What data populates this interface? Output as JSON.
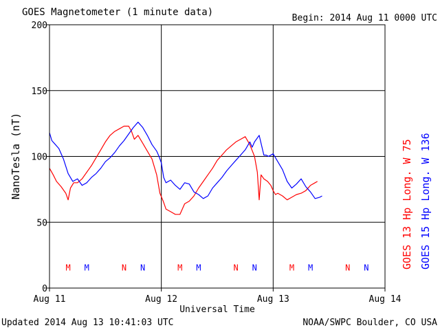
{
  "chart_data": {
    "type": "line",
    "title": "GOES Magnetometer (1 minute data)",
    "begin_label": "Begin:  2014 Aug 11 0000 UTC",
    "ylabel": "NanoTesla (nT)",
    "xlabel": "Universal Time",
    "ylim": [
      0,
      200
    ],
    "xlim": [
      0,
      72
    ],
    "x_units": "hours since 2014 Aug 11 0000 UTC",
    "y_ticks": [
      "0",
      "50",
      "100",
      "150",
      "200"
    ],
    "x_ticks": [
      {
        "x": 0,
        "label": "Aug 11"
      },
      {
        "x": 24,
        "label": "Aug 12"
      },
      {
        "x": 48,
        "label": "Aug 13"
      },
      {
        "x": 72,
        "label": "Aug 14"
      }
    ],
    "grid": true,
    "series": [
      {
        "name": "GOES 13 Hp  Long. W 75",
        "color": "#ff0000",
        "points": [
          [
            0,
            91
          ],
          [
            0.8,
            86
          ],
          [
            1.5,
            81
          ],
          [
            2.5,
            77
          ],
          [
            3.5,
            72
          ],
          [
            4.0,
            67
          ],
          [
            4.5,
            76
          ],
          [
            5.2,
            80
          ],
          [
            6.0,
            80
          ],
          [
            7.0,
            83
          ],
          [
            8.0,
            88
          ],
          [
            9.0,
            93
          ],
          [
            10.0,
            99
          ],
          [
            11.0,
            105
          ],
          [
            12.0,
            111
          ],
          [
            13.0,
            116
          ],
          [
            14.0,
            119
          ],
          [
            15.0,
            121
          ],
          [
            16.0,
            123
          ],
          [
            17.0,
            123
          ],
          [
            17.6,
            119
          ],
          [
            18.2,
            113
          ],
          [
            19.0,
            116
          ],
          [
            20.0,
            110
          ],
          [
            21.0,
            104
          ],
          [
            22.0,
            98
          ],
          [
            23.0,
            86
          ],
          [
            23.7,
            72
          ],
          [
            24.4,
            66
          ],
          [
            25.0,
            60
          ],
          [
            26.0,
            58
          ],
          [
            27.0,
            56
          ],
          [
            28.0,
            56
          ],
          [
            29.0,
            64
          ],
          [
            30.0,
            66
          ],
          [
            31.0,
            70
          ],
          [
            32.0,
            76
          ],
          [
            33.0,
            81
          ],
          [
            34.0,
            86
          ],
          [
            35.0,
            91
          ],
          [
            36.0,
            97
          ],
          [
            37.0,
            101
          ],
          [
            38.0,
            105
          ],
          [
            39.0,
            108
          ],
          [
            40.0,
            111
          ],
          [
            41.0,
            113
          ],
          [
            42.0,
            115
          ],
          [
            43.0,
            109
          ],
          [
            44.0,
            100
          ],
          [
            44.6,
            88
          ],
          [
            45.0,
            67
          ],
          [
            45.4,
            86
          ],
          [
            46.0,
            83
          ],
          [
            46.8,
            81
          ],
          [
            47.5,
            78
          ],
          [
            48.0,
            74
          ],
          [
            48.5,
            71
          ],
          [
            49.0,
            72
          ],
          [
            50.0,
            70
          ],
          [
            51.0,
            67
          ],
          [
            52.0,
            69
          ],
          [
            53.0,
            71
          ],
          [
            54.0,
            72
          ],
          [
            55.0,
            74
          ],
          [
            56.0,
            78
          ],
          [
            57.0,
            80
          ],
          [
            57.5,
            81
          ]
        ]
      },
      {
        "name": "GOES 15 Hp  Long. W 136",
        "color": "#0000ff",
        "points": [
          [
            0,
            118
          ],
          [
            0.5,
            112
          ],
          [
            1.0,
            110
          ],
          [
            2.0,
            106
          ],
          [
            3.0,
            98
          ],
          [
            4.0,
            87
          ],
          [
            5.0,
            81
          ],
          [
            6.0,
            83
          ],
          [
            7.0,
            78
          ],
          [
            8.0,
            80
          ],
          [
            9.0,
            84
          ],
          [
            10.0,
            87
          ],
          [
            11.0,
            91
          ],
          [
            12.0,
            96
          ],
          [
            13.0,
            99
          ],
          [
            14.0,
            103
          ],
          [
            15.0,
            108
          ],
          [
            16.0,
            112
          ],
          [
            17.0,
            117
          ],
          [
            18.0,
            122
          ],
          [
            19.0,
            126
          ],
          [
            20.0,
            122
          ],
          [
            21.0,
            116
          ],
          [
            22.0,
            109
          ],
          [
            23.0,
            104
          ],
          [
            23.5,
            100
          ],
          [
            24.0,
            95
          ],
          [
            24.5,
            84
          ],
          [
            25.0,
            80
          ],
          [
            26.0,
            82
          ],
          [
            27.0,
            78
          ],
          [
            28.0,
            75
          ],
          [
            29.0,
            80
          ],
          [
            30.0,
            79
          ],
          [
            31.0,
            73
          ],
          [
            32.0,
            71
          ],
          [
            33.0,
            68
          ],
          [
            34.0,
            70
          ],
          [
            35.0,
            76
          ],
          [
            36.0,
            80
          ],
          [
            37.0,
            84
          ],
          [
            38.0,
            89
          ],
          [
            39.0,
            93
          ],
          [
            40.0,
            97
          ],
          [
            41.0,
            101
          ],
          [
            42.0,
            105
          ],
          [
            43.0,
            111
          ],
          [
            43.5,
            107
          ],
          [
            44.0,
            111
          ],
          [
            45.0,
            116
          ],
          [
            46.0,
            101
          ],
          [
            46.5,
            101
          ],
          [
            47.0,
            100
          ],
          [
            48.0,
            102
          ],
          [
            49.0,
            96
          ],
          [
            50.0,
            90
          ],
          [
            51.0,
            81
          ],
          [
            52.0,
            76
          ],
          [
            53.0,
            79
          ],
          [
            54.0,
            83
          ],
          [
            55.0,
            77
          ],
          [
            56.0,
            73
          ],
          [
            57.0,
            68
          ],
          [
            58.0,
            69
          ],
          [
            58.5,
            70
          ]
        ]
      }
    ],
    "event_marker_rows": [
      {
        "series": "GOES 13 Hp  Long. W 75",
        "color": "#ff0000",
        "markers": [
          {
            "x": 4,
            "label": "M"
          },
          {
            "x": 16,
            "label": "N"
          },
          {
            "x": 28,
            "label": "M"
          },
          {
            "x": 40,
            "label": "N"
          },
          {
            "x": 52,
            "label": "M"
          },
          {
            "x": 64,
            "label": "N"
          }
        ]
      },
      {
        "series": "GOES 15 Hp  Long. W 136",
        "color": "#0000ff",
        "markers": [
          {
            "x": 8,
            "label": "M"
          },
          {
            "x": 20,
            "label": "N"
          },
          {
            "x": 32,
            "label": "M"
          },
          {
            "x": 44,
            "label": "N"
          },
          {
            "x": 56,
            "label": "M"
          },
          {
            "x": 68,
            "label": "N"
          }
        ]
      }
    ],
    "legend_placement": "right",
    "legend": [
      {
        "label": "GOES 13 Hp  Long. W 75",
        "color": "#ff0000"
      },
      {
        "label": "GOES 15 Hp  Long. W 136",
        "color": "#0000ff"
      }
    ]
  },
  "footer": {
    "updated": "Updated 2014 Aug 13 10:41:03 UTC",
    "credit": "NOAA/SWPC Boulder, CO USA"
  }
}
